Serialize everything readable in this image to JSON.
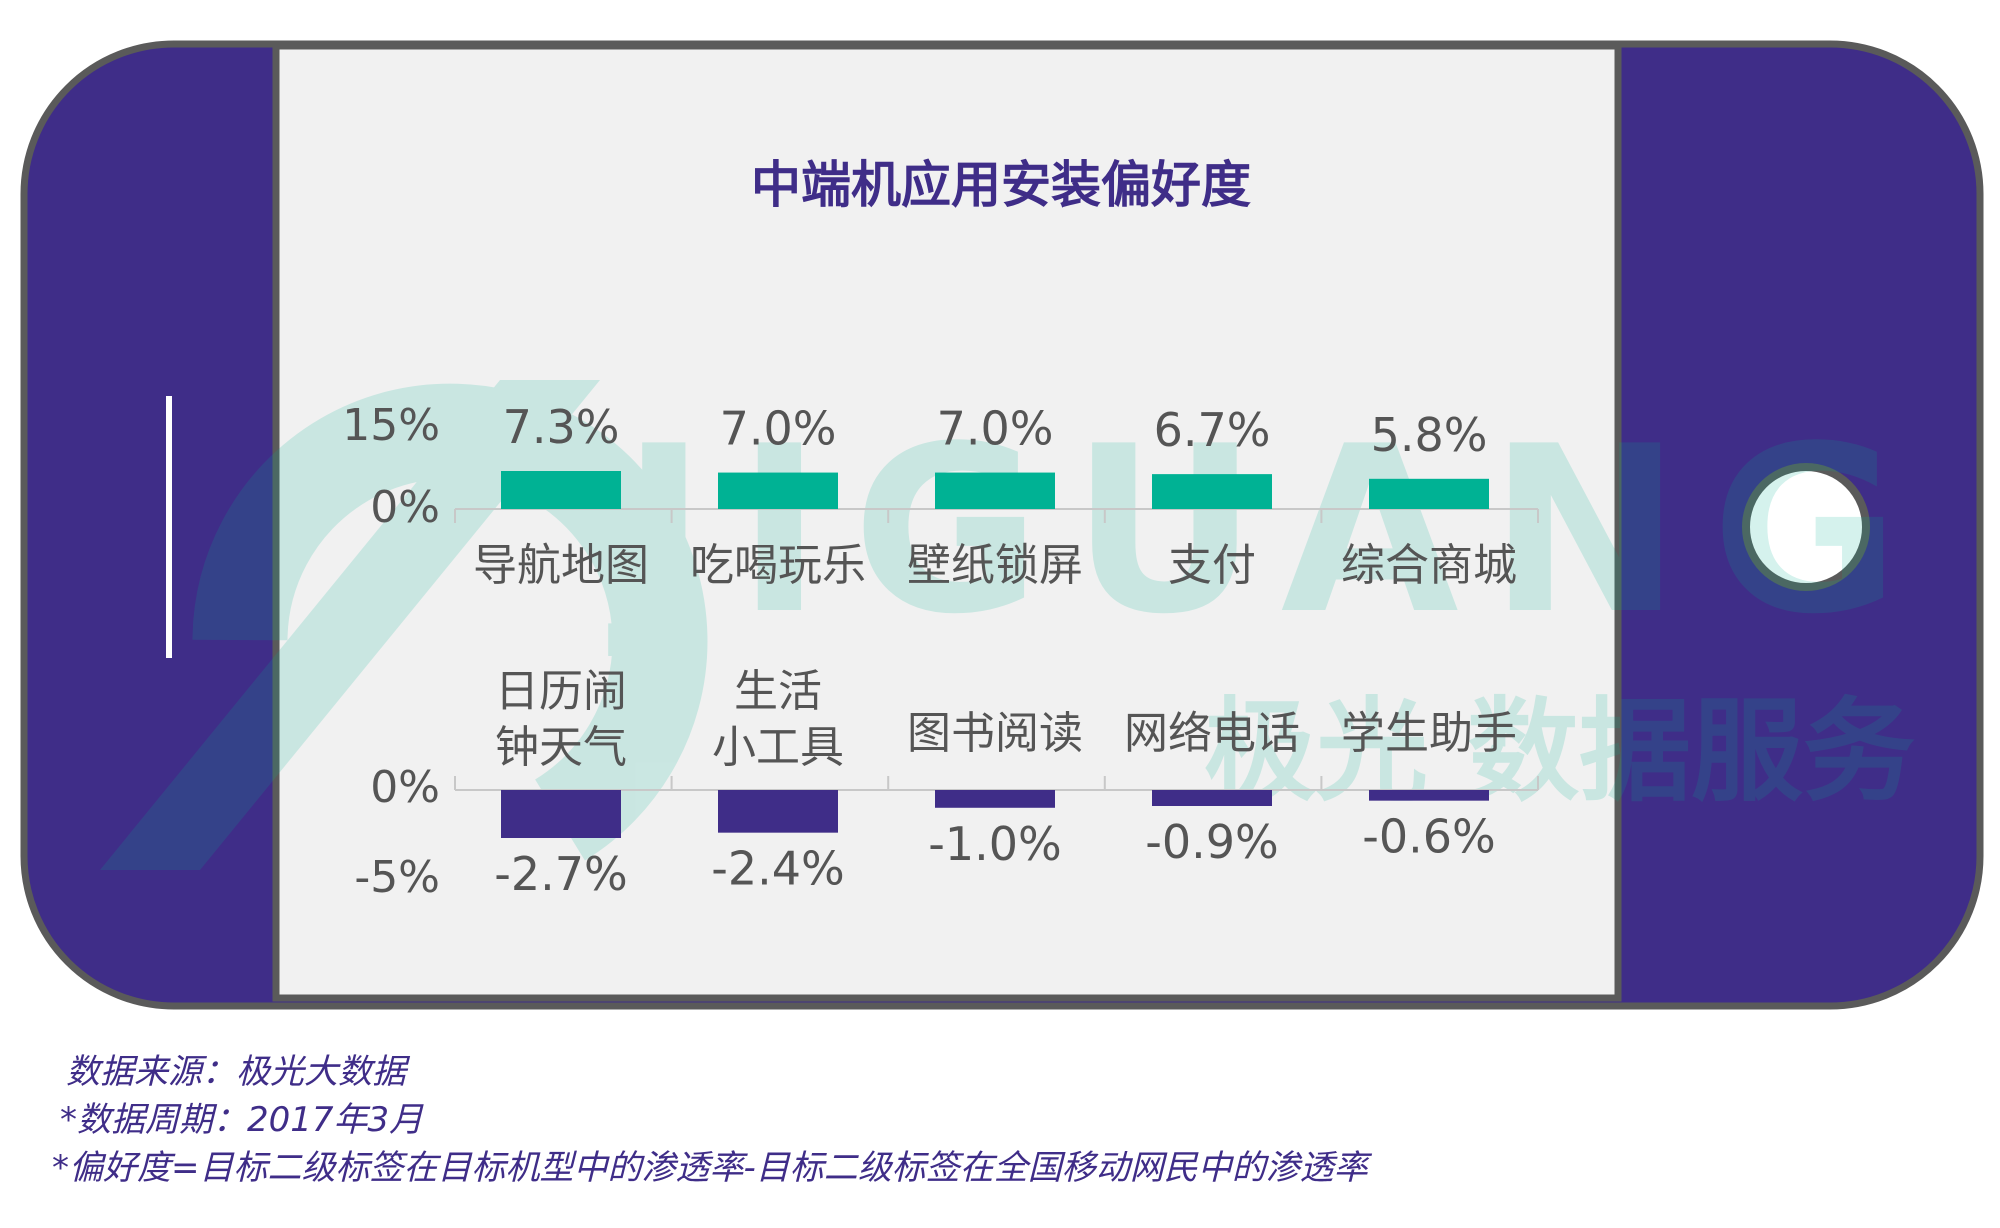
{
  "chart_data": {
    "type": "bar",
    "title": "中端机应用安装偏好度",
    "charts": [
      {
        "categories": [
          "导航地图",
          "吃喝玩乐",
          "壁纸锁屏",
          "支付",
          "综合商城"
        ],
        "values": [
          7.3,
          7.0,
          7.0,
          6.7,
          5.8
        ],
        "value_labels": [
          "7.3%",
          "7.0%",
          "7.0%",
          "6.7%",
          "5.8%"
        ],
        "ytick_labels": [
          "15%",
          "0%"
        ],
        "ylim": [
          0,
          15
        ],
        "color": "#00b294",
        "grid": false
      },
      {
        "categories": [
          [
            "日历闹",
            "钟天气"
          ],
          [
            "生活",
            "小工具"
          ],
          [
            "图书阅读"
          ],
          [
            "网络电话"
          ],
          [
            "学生助手"
          ]
        ],
        "values": [
          -2.7,
          -2.4,
          -1.0,
          -0.9,
          -0.6
        ],
        "value_labels": [
          "-2.7%",
          "-2.4%",
          "-1.0%",
          "-0.9%",
          "-0.6%"
        ],
        "ytick_labels": [
          "0%",
          "-5%"
        ],
        "ylim": [
          -5,
          0
        ],
        "color": "#3f2d88",
        "grid": false
      }
    ]
  },
  "watermark": {
    "brand": "JIGUANG",
    "cn": "极光 数据服务"
  },
  "footer": {
    "source": "数据来源：极光大数据",
    "period": "*数据周期：2017年3月",
    "note": "*偏好度=目标二级标签在目标机型中的渗透率-目标二级标签在全国移动网民中的渗透率"
  },
  "colors": {
    "phone_body": "#3f2d88",
    "screen": "#f1f1f1",
    "frame": "#5a5a5a",
    "positive": "#00b294",
    "negative": "#3f2d88",
    "text": "#555555"
  }
}
